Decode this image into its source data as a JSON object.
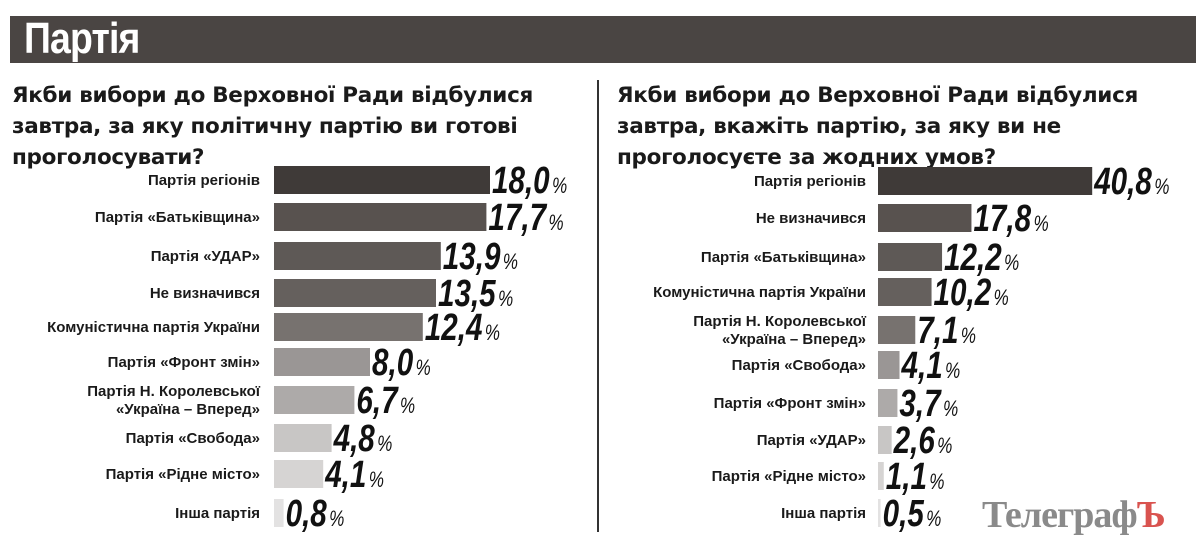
{
  "header": {
    "title": "Партія"
  },
  "watermark": {
    "text": "Телеграф",
    "accent_letter": "Ъ",
    "accent_color": "#d9534f"
  },
  "chart_data": [
    {
      "type": "bar",
      "orientation": "horizontal",
      "title": "Якби вибори до Верховної Ради відбулися завтра, за яку політичну партію ви готові проголосувати?",
      "unit": "%",
      "categories": [
        "Партія регіонів",
        "Партія «Батьківщина»",
        "Партія «УДАР»",
        "Не визначився",
        "Комуністична партія України",
        "Партія «Фронт змін»",
        "Партія Н. Королевської\n«Україна – Вперед»",
        "Партія «Свобода»",
        "Партія «Рідне місто»",
        "Інша партія"
      ],
      "values": [
        18.0,
        17.7,
        13.9,
        13.5,
        12.4,
        8.0,
        6.7,
        4.8,
        4.1,
        0.8
      ],
      "labels": [
        "18,0",
        "17,7",
        "13,9",
        "13,5",
        "12,4",
        "8,0",
        "6,7",
        "4,8",
        "4,1",
        "0,8"
      ],
      "colors": [
        "#3f3a38",
        "#58524f",
        "#5e5956",
        "#65605d",
        "#77726f",
        "#9a9695",
        "#adaaa9",
        "#c8c6c5",
        "#d6d4d3",
        "#e3e2e2"
      ]
    },
    {
      "type": "bar",
      "orientation": "horizontal",
      "title": "Якби вибори до Верховної Ради відбулися завтра, вкажіть партію, за яку ви не проголосуєте за жодних умов?",
      "unit": "%",
      "categories": [
        "Партія регіонів",
        "Не визначився",
        "Партія «Батьківщина»",
        "Комуністична партія України",
        "Партія Н. Королевської\n«Україна – Вперед»",
        "Партія «Свобода»",
        "Партія «Фронт змін»",
        "Партія «УДАР»",
        "Партія «Рідне місто»",
        "Інша партія"
      ],
      "values": [
        40.8,
        17.8,
        12.2,
        10.2,
        7.1,
        4.1,
        3.7,
        2.6,
        1.1,
        0.5
      ],
      "labels": [
        "40,8",
        "17,8",
        "12,2",
        "10,2",
        "7,1",
        "4,1",
        "3,7",
        "2,6",
        "1,1",
        "0,5"
      ],
      "colors": [
        "#3f3a38",
        "#58524f",
        "#5e5956",
        "#65605d",
        "#77726f",
        "#9a9695",
        "#adaaa9",
        "#c8c6c5",
        "#d6d4d3",
        "#e3e2e2"
      ]
    }
  ]
}
